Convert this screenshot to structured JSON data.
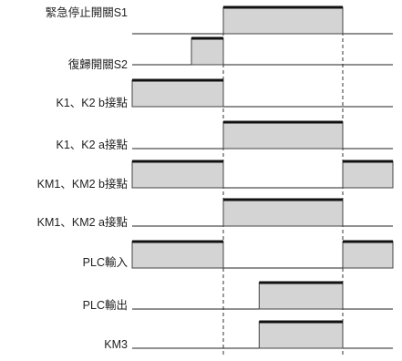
{
  "colors": {
    "pulse_fill": "#d4d4d4",
    "pulse_outline": "#444444",
    "high_edge": "#111111",
    "baseline": "#222222",
    "guide_line": "#333333"
  },
  "signals": [
    {
      "label": "緊急停止開關S1",
      "segments": [
        [
          1,
          3
        ]
      ]
    },
    {
      "label": "復歸開關S2",
      "segments": [
        [
          0.5,
          1
        ]
      ]
    },
    {
      "label": "K1、K2 b接點",
      "segments": [
        [
          -1,
          1
        ]
      ]
    },
    {
      "label": "K1、K2 a接點",
      "segments": [
        [
          1,
          3
        ]
      ]
    },
    {
      "label": "KM1、KM2 b接點",
      "segments": [
        [
          -1,
          1
        ],
        [
          3,
          4
        ]
      ]
    },
    {
      "label": "KM1、KM2 a接點",
      "segments": [
        [
          1,
          3
        ]
      ]
    },
    {
      "label": "PLC輸入",
      "segments": [
        [
          -1,
          1
        ],
        [
          3,
          4
        ]
      ]
    },
    {
      "label": "PLC輸出",
      "segments": [
        [
          1.6,
          3
        ]
      ]
    },
    {
      "label": "KM3",
      "segments": [
        [
          1.6,
          3
        ]
      ]
    }
  ]
}
